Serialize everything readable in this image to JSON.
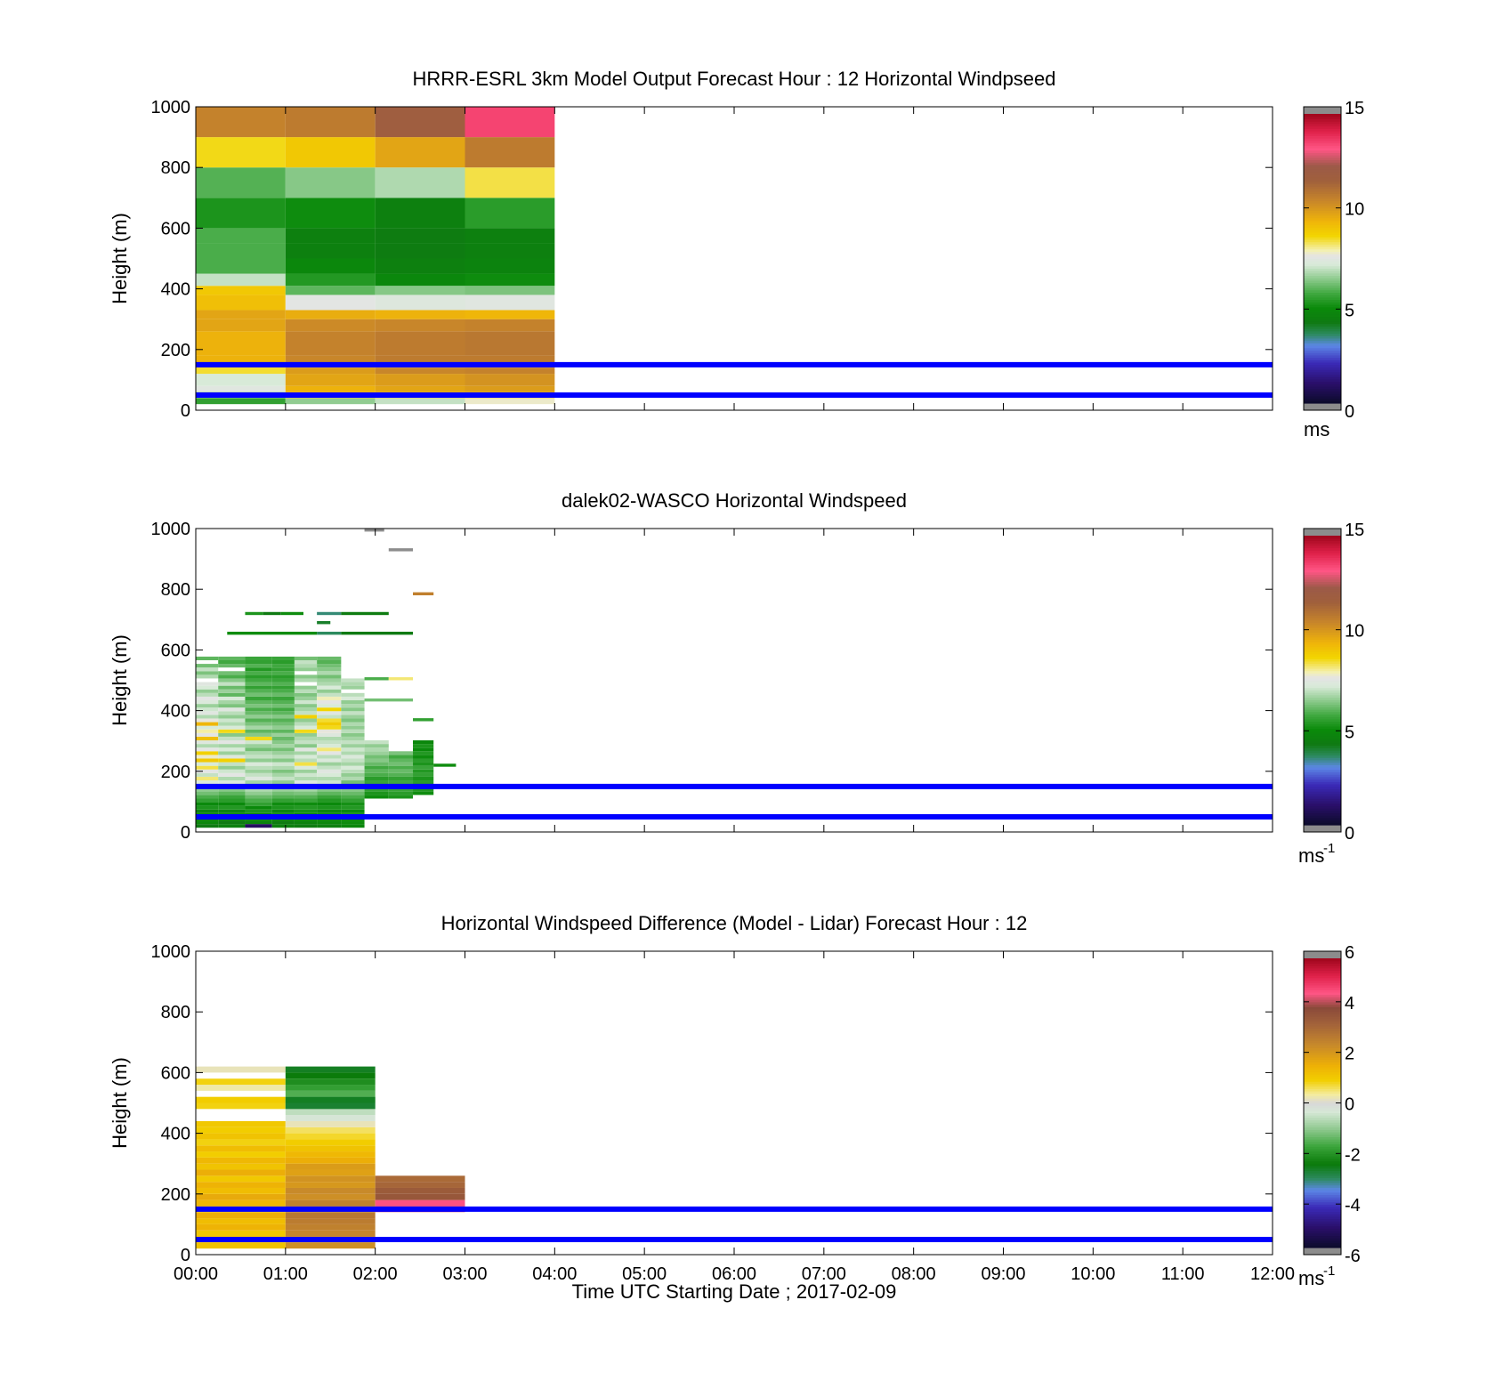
{
  "figure": {
    "x_ticklabels": [
      "00:00",
      "01:00",
      "02:00",
      "03:00",
      "04:00",
      "05:00",
      "06:00",
      "07:00",
      "08:00",
      "09:00",
      "10:00",
      "11:00",
      "12:00"
    ],
    "xlabel": "Time UTC  Starting Date ; 2017-02-09",
    "reference_heights_color": "#0000ff",
    "reference_heights": [
      50,
      150
    ]
  },
  "chart_data": [
    {
      "type": "heatmap",
      "title": "HRRR-ESRL 3km Model Output   Forecast Hour : 12 Horizontal Windpseed",
      "ylabel": "Height (m)",
      "ylim": [
        0,
        1000
      ],
      "y_ticks": [
        0,
        200,
        400,
        600,
        800,
        1000
      ],
      "xlim_hours": [
        0,
        12
      ],
      "colorbar": {
        "min": 0,
        "max": 15,
        "ticks": [
          0,
          5,
          10,
          15
        ],
        "unit": "ms",
        "unit_sup": ""
      },
      "time_bins_hours": [
        [
          0,
          1
        ],
        [
          1,
          2
        ],
        [
          2,
          3
        ],
        [
          3,
          4
        ]
      ],
      "height_bins_m": [
        [
          20,
          40
        ],
        [
          40,
          60
        ],
        [
          60,
          80
        ],
        [
          80,
          120
        ],
        [
          120,
          140
        ],
        [
          140,
          180
        ],
        [
          180,
          260
        ],
        [
          260,
          300
        ],
        [
          300,
          330
        ],
        [
          330,
          380
        ],
        [
          380,
          410
        ],
        [
          410,
          450
        ],
        [
          450,
          500
        ],
        [
          500,
          550
        ],
        [
          550,
          600
        ],
        [
          600,
          700
        ],
        [
          700,
          800
        ],
        [
          800,
          900
        ],
        [
          900,
          1000
        ]
      ],
      "values": [
        [
          5.5,
          6.5,
          7.0,
          7.8
        ],
        [
          6.5,
          9.5,
          9.5,
          9.5
        ],
        [
          7.5,
          9.5,
          9.8,
          10.0
        ],
        [
          7.2,
          9.8,
          10.0,
          10.2
        ],
        [
          8.5,
          10.0,
          10.5,
          10.6
        ],
        [
          9.5,
          10.5,
          10.8,
          10.8
        ],
        [
          9.5,
          10.6,
          10.8,
          10.9
        ],
        [
          9.8,
          10.4,
          10.5,
          10.6
        ],
        [
          9.8,
          9.6,
          9.5,
          9.4
        ],
        [
          9.2,
          7.6,
          7.4,
          7.5
        ],
        [
          9.0,
          6.0,
          6.4,
          6.3
        ],
        [
          7.0,
          5.3,
          4.8,
          5.0
        ],
        [
          5.8,
          4.8,
          4.5,
          4.6
        ],
        [
          5.8,
          4.5,
          4.3,
          4.5
        ],
        [
          5.8,
          4.5,
          4.3,
          4.5
        ],
        [
          5.2,
          5.0,
          4.5,
          5.4
        ],
        [
          5.9,
          6.4,
          6.8,
          8.4
        ],
        [
          8.6,
          9.0,
          9.8,
          10.8
        ],
        [
          10.6,
          10.8,
          11.8,
          13.5
        ]
      ]
    },
    {
      "type": "heatmap",
      "title": "dalek02-WASCO  Horizontal Windspeed",
      "ylabel": "Height (m)",
      "ylim": [
        0,
        1000
      ],
      "y_ticks": [
        0,
        200,
        400,
        600,
        800,
        1000
      ],
      "xlim_hours": [
        0,
        12
      ],
      "colorbar": {
        "min": 0,
        "max": 15,
        "ticks": [
          0,
          5,
          10,
          15
        ],
        "unit": "ms",
        "unit_sup": "-1"
      },
      "height_step_m": 12,
      "heights_m": [
        20,
        32,
        44,
        56,
        68,
        80,
        92,
        104,
        116,
        128,
        140,
        152,
        164,
        176,
        188,
        200,
        212,
        224,
        236,
        248,
        260,
        272,
        284,
        296,
        308,
        320,
        332,
        344,
        356,
        368,
        380,
        392,
        404,
        416,
        428,
        440,
        452,
        464,
        476,
        488,
        500,
        512,
        524,
        536,
        548,
        560,
        572,
        584
      ],
      "columns": [
        {
          "t": [
            0.0,
            0.25
          ],
          "values": [
            4.2,
            4.8,
            4.5,
            5.0,
            4.6,
            5.2,
            4.9,
            5.5,
            5.8,
            6.2,
            6.5,
            7.0,
            7.3,
            8.2,
            7.0,
            7.6,
            8.4,
            7.2,
            9.0,
            7.8,
            8.8,
            7.6,
            6.8,
            7.4,
            9.2,
            7.6,
            8.0,
            7.2,
            9.4,
            7.7,
            6.8,
            7.5,
            7.1,
            6.6,
            7.3,
            7.6,
            6.9,
            6.5,
            7.2,
            7.5,
            null,
            6.8,
            6.3,
            7.0,
            6.2,
            null,
            6.0,
            null
          ]
        },
        {
          "t": [
            0.25,
            0.55
          ],
          "values": [
            4.5,
            4.2,
            4.8,
            5.0,
            4.6,
            5.3,
            4.9,
            5.4,
            5.6,
            6.0,
            6.4,
            6.8,
            7.3,
            6.8,
            7.6,
            7.1,
            6.5,
            7.0,
            8.8,
            7.4,
            6.6,
            7.2,
            6.7,
            7.6,
            7.0,
            6.4,
            8.6,
            7.2,
            6.8,
            7.1,
            6.5,
            6.9,
            7.5,
            6.3,
            6.7,
            7.2,
            6.0,
            6.6,
            6.1,
            7.0,
            6.4,
            5.8,
            6.2,
            null,
            6.1,
            5.7,
            6.0,
            null
          ]
        },
        {
          "t": [
            0.55,
            0.85
          ],
          "values": [
            0.9,
            4.6,
            5.0,
            4.7,
            5.2,
            4.9,
            5.5,
            5.8,
            6.1,
            6.5,
            6.8,
            7.1,
            6.7,
            7.4,
            7.0,
            6.6,
            6.9,
            7.3,
            6.5,
            7.0,
            6.8,
            6.2,
            6.6,
            7.1,
            8.6,
            6.4,
            6.0,
            6.7,
            6.3,
            5.9,
            6.5,
            6.1,
            5.8,
            6.3,
            6.0,
            5.6,
            6.2,
            5.9,
            5.5,
            6.0,
            5.7,
            5.4,
            5.8,
            5.3,
            5.9,
            5.5,
            5.6,
            null
          ]
        },
        {
          "t": [
            0.85,
            1.1
          ],
          "values": [
            4.5,
            4.3,
            4.8,
            5.1,
            4.7,
            5.2,
            5.0,
            5.5,
            5.9,
            6.2,
            6.6,
            6.9,
            6.5,
            7.0,
            6.7,
            6.3,
            6.8,
            7.1,
            6.4,
            6.9,
            6.6,
            6.2,
            6.7,
            6.4,
            6.1,
            6.6,
            6.0,
            6.5,
            6.2,
            5.9,
            6.4,
            6.0,
            5.7,
            6.2,
            5.9,
            5.6,
            6.1,
            5.8,
            5.5,
            5.9,
            5.6,
            5.4,
            5.8,
            5.5,
            5.7,
            5.4,
            5.6,
            null
          ]
        },
        {
          "t": [
            1.1,
            1.35
          ],
          "values": [
            4.3,
            4.6,
            4.9,
            4.8,
            5.1,
            5.3,
            5.0,
            5.6,
            5.9,
            6.3,
            6.7,
            7.0,
            7.4,
            6.8,
            7.1,
            6.6,
            7.3,
            8.4,
            6.9,
            7.2,
            6.7,
            7.5,
            6.4,
            7.0,
            6.8,
            6.5,
            8.6,
            7.2,
            6.9,
            6.5,
            8.8,
            7.0,
            6.7,
            6.4,
            7.1,
            6.6,
            6.3,
            6.9,
            6.5,
            null,
            6.8,
            6.4,
            null,
            6.5,
            6.8,
            7.0,
            6.2,
            null
          ]
        },
        {
          "t": [
            1.35,
            1.62
          ],
          "values": [
            4.5,
            4.8,
            4.6,
            5.0,
            4.7,
            5.2,
            4.9,
            5.3,
            5.6,
            6.0,
            6.4,
            6.7,
            7.1,
            6.8,
            7.2,
            7.5,
            7.0,
            6.6,
            7.3,
            6.9,
            7.6,
            8.2,
            7.2,
            7.0,
            6.8,
            7.4,
            7.7,
            8.6,
            8.9,
            8.5,
            7.0,
            7.5,
            8.7,
            7.2,
            7.6,
            7.9,
            7.0,
            6.5,
            7.2,
            6.8,
            6.6,
            6.2,
            6.8,
            6.4,
            6.2,
            5.9,
            6.1,
            null
          ]
        },
        {
          "t": [
            1.62,
            1.88
          ],
          "values": [
            4.8,
            5.0,
            4.6,
            5.2,
            4.9,
            5.3,
            5.1,
            5.5,
            5.8,
            6.1,
            6.4,
            6.6,
            6.2,
            6.8,
            6.5,
            6.9,
            7.2,
            6.7,
            7.0,
            7.3,
            6.8,
            7.1,
            6.6,
            7.0,
            6.7,
            6.4,
            6.9,
            6.5,
            6.8,
            6.3,
            6.6,
            7.0,
            6.4,
            6.8,
            6.5,
            7.2,
            6.9,
            null,
            6.6,
            6.8,
            7.0,
            null,
            null,
            null,
            null,
            null,
            null,
            null
          ]
        },
        {
          "t": [
            1.88,
            2.15
          ],
          "values": [
            null,
            null,
            null,
            null,
            null,
            null,
            null,
            null,
            5.0,
            5.2,
            5.5,
            5.3,
            5.6,
            5.4,
            5.8,
            6.0,
            5.7,
            6.1,
            6.4,
            6.2,
            6.6,
            6.8,
            6.5,
            7.0,
            null,
            null,
            null,
            null,
            null,
            null,
            null,
            null,
            null,
            null,
            null,
            null,
            null,
            null,
            null,
            null,
            null,
            null,
            null,
            null,
            null,
            null,
            null,
            null
          ]
        },
        {
          "t": [
            2.15,
            2.42
          ],
          "values": [
            null,
            null,
            null,
            null,
            null,
            null,
            null,
            null,
            5.2,
            5.4,
            5.6,
            5.3,
            5.7,
            5.5,
            5.9,
            6.1,
            5.8,
            6.2,
            6.0,
            5.7,
            6.3,
            null,
            null,
            null,
            null,
            null,
            null,
            null,
            null,
            null,
            null,
            null,
            null,
            null,
            null,
            null,
            null,
            null,
            null,
            null,
            null,
            null,
            null,
            null,
            null,
            null,
            null,
            null
          ]
        },
        {
          "t": [
            2.42,
            2.65
          ],
          "values": [
            null,
            null,
            null,
            null,
            null,
            null,
            null,
            null,
            null,
            5.0,
            5.3,
            5.1,
            5.4,
            5.2,
            5.5,
            5.3,
            5.6,
            5.2,
            5.4,
            5.0,
            5.3,
            4.9,
            5.2,
            4.8,
            null,
            null,
            null,
            null,
            null,
            null,
            null,
            null,
            null,
            null,
            null,
            null,
            null,
            null,
            null,
            null,
            null,
            null,
            null,
            null,
            null,
            null,
            null,
            null
          ]
        }
      ],
      "isolated_segments": [
        {
          "t": [
            2.65,
            2.9
          ],
          "h": 220,
          "v": 5.0
        },
        {
          "t": [
            0.55,
            0.75
          ],
          "h": 720,
          "v": 5.2
        },
        {
          "t": [
            0.75,
            0.95
          ],
          "h": 720,
          "v": 4.2
        },
        {
          "t": [
            0.95,
            1.2
          ],
          "h": 720,
          "v": 5.0
        },
        {
          "t": [
            1.35,
            1.62
          ],
          "h": 720,
          "v": 3.5
        },
        {
          "t": [
            1.62,
            2.15
          ],
          "h": 720,
          "v": 4.3
        },
        {
          "t": [
            1.35,
            1.5
          ],
          "h": 690,
          "v": 4.0
        },
        {
          "t": [
            0.35,
            1.35
          ],
          "h": 655,
          "v": 5.0
        },
        {
          "t": [
            1.35,
            1.62
          ],
          "h": 655,
          "v": 3.6
        },
        {
          "t": [
            1.62,
            2.42
          ],
          "h": 655,
          "v": 4.2
        },
        {
          "t": [
            1.88,
            2.15
          ],
          "h": 505,
          "v": 5.8
        },
        {
          "t": [
            2.15,
            2.42
          ],
          "h": 505,
          "v": 8.2
        },
        {
          "t": [
            1.88,
            2.42
          ],
          "h": 435,
          "v": 6.2
        },
        {
          "t": [
            2.42,
            2.65
          ],
          "h": 370,
          "v": 5.5
        },
        {
          "t": [
            2.42,
            2.65
          ],
          "h": 785,
          "v": 10.7
        },
        {
          "t": [
            2.15,
            2.42
          ],
          "h": 930,
          "v": 15.8
        },
        {
          "t": [
            1.88,
            2.1
          ],
          "h": 995,
          "v": 15.8
        }
      ]
    },
    {
      "type": "heatmap",
      "title": "Horizontal Windspeed Difference (Model - Lidar) Forecast Hour : 12",
      "ylabel": "Height (m)",
      "ylim": [
        0,
        1000
      ],
      "y_ticks": [
        0,
        200,
        400,
        600,
        800,
        1000
      ],
      "xlim_hours": [
        0,
        12
      ],
      "colorbar": {
        "min": -6,
        "max": 6,
        "ticks": [
          -6,
          -4,
          -2,
          0,
          2,
          4,
          6
        ],
        "unit": "ms",
        "unit_sup": "-1"
      },
      "blocks": [
        {
          "t": [
            0,
            1
          ],
          "h_start": 20,
          "h_step": 20,
          "values": [
            1.2,
            1.4,
            1.1,
            1.5,
            1.3,
            1.6,
            1.2,
            1.4,
            1.7,
            1.3,
            1.5,
            1.1,
            1.6,
            1.2,
            1.4,
            1.0,
            1.3,
            0.9,
            1.2,
            1.0,
            1.1,
            null,
            null,
            0.9,
            1.0,
            null,
            0.3,
            0.9,
            null,
            0.2
          ]
        },
        {
          "t": [
            1,
            2
          ],
          "h_start": 20,
          "h_step": 20,
          "values": [
            2.3,
            2.4,
            2.5,
            2.6,
            2.7,
            2.8,
            2.5,
            2.6,
            2.3,
            2.4,
            2.1,
            2.2,
            1.9,
            2.0,
            1.6,
            1.4,
            1.2,
            1.0,
            0.8,
            0.6,
            0.2,
            -0.3,
            -0.6,
            -1.0,
            -1.3,
            -1.6,
            -1.9,
            -2.2,
            -2.5,
            -2.7
          ]
        },
        {
          "t": [
            1,
            2
          ],
          "h_start": 480,
          "h_step": 20,
          "values": [
            -2.8,
            -2.7
          ]
        },
        {
          "t": [
            2,
            3
          ],
          "h_start": 140,
          "h_step": 20,
          "values": [
            4.4,
            4.6,
            3.6,
            3.5,
            3.2,
            3.1
          ]
        }
      ]
    }
  ]
}
